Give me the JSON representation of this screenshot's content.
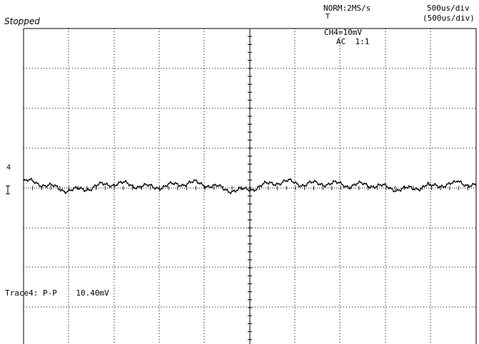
{
  "status": "Stopped",
  "acq_mode": "NORM:2MS/s",
  "timebase": "500us/div",
  "timebase_paren": "(500us/div)",
  "channel_scale": "CH4=10mV",
  "coupling": "AC  1:1",
  "trigger_marker": "T",
  "channel_marker": "4",
  "measurement": "Trace4: P-P    10.40mV",
  "colors": {
    "trace": "#000000",
    "grid": "#000000",
    "background": "#ffffff"
  }
}
